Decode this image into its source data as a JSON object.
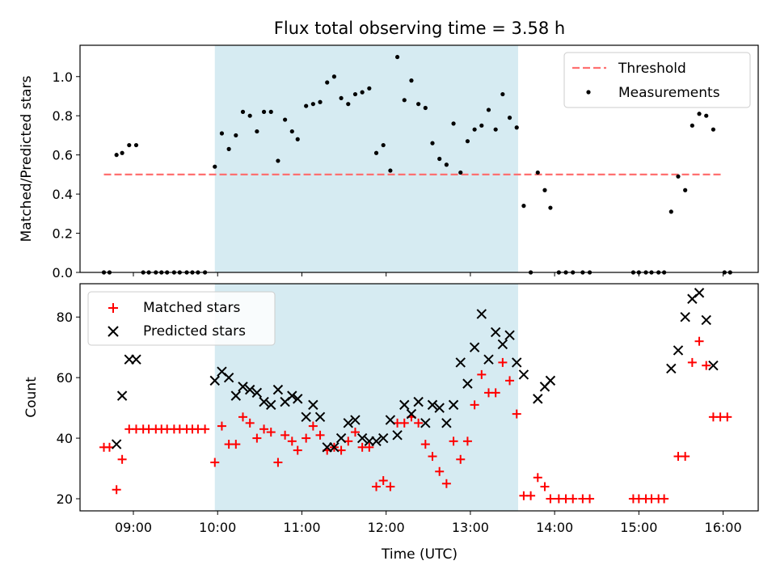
{
  "title": "Flux total observing time = 3.58 h",
  "highlight": {
    "start": "09:58",
    "end": "13:34",
    "color": "#add8e6"
  },
  "x_axis": {
    "label": "Time (UTC)",
    "range": [
      "08:22",
      "16:25"
    ],
    "ticks": [
      "09:00",
      "10:00",
      "11:00",
      "12:00",
      "13:00",
      "14:00",
      "15:00",
      "16:00"
    ]
  },
  "chart_data": [
    {
      "type": "scatter",
      "ylabel": "Matched/Predicted stars",
      "ylim": [
        0,
        1.16
      ],
      "yticks": [
        "0.0",
        "0.2",
        "0.4",
        "0.6",
        "0.8",
        "1.0"
      ],
      "legend": {
        "placement": "top-right",
        "entries": [
          "Threshold",
          "Measurements"
        ]
      },
      "threshold": {
        "name": "Threshold",
        "value": 0.5,
        "x_start": "08:39",
        "x_end": "16:00",
        "color": "#ff7070"
      },
      "series": [
        {
          "name": "Measurements",
          "color": "#000000",
          "points": [
            [
              "08:39",
              0.0
            ],
            [
              "08:43",
              0.0
            ],
            [
              "08:48",
              0.6
            ],
            [
              "08:52",
              0.61
            ],
            [
              "08:57",
              0.65
            ],
            [
              "09:02",
              0.65
            ],
            [
              "09:07",
              0.0
            ],
            [
              "09:11",
              0.0
            ],
            [
              "09:16",
              0.0
            ],
            [
              "09:20",
              0.0
            ],
            [
              "09:24",
              0.0
            ],
            [
              "09:29",
              0.0
            ],
            [
              "09:33",
              0.0
            ],
            [
              "09:38",
              0.0
            ],
            [
              "09:42",
              0.0
            ],
            [
              "09:46",
              0.0
            ],
            [
              "09:51",
              0.0
            ],
            [
              "09:58",
              0.54
            ],
            [
              "10:03",
              0.71
            ],
            [
              "10:08",
              0.63
            ],
            [
              "10:13",
              0.7
            ],
            [
              "10:18",
              0.82
            ],
            [
              "10:23",
              0.8
            ],
            [
              "10:28",
              0.72
            ],
            [
              "10:33",
              0.82
            ],
            [
              "10:38",
              0.82
            ],
            [
              "10:43",
              0.57
            ],
            [
              "10:48",
              0.78
            ],
            [
              "10:53",
              0.72
            ],
            [
              "10:57",
              0.68
            ],
            [
              "11:03",
              0.85
            ],
            [
              "11:08",
              0.86
            ],
            [
              "11:13",
              0.87
            ],
            [
              "11:18",
              0.97
            ],
            [
              "11:23",
              1.0
            ],
            [
              "11:28",
              0.89
            ],
            [
              "11:33",
              0.86
            ],
            [
              "11:38",
              0.91
            ],
            [
              "11:43",
              0.92
            ],
            [
              "11:48",
              0.94
            ],
            [
              "11:53",
              0.61
            ],
            [
              "11:58",
              0.65
            ],
            [
              "12:03",
              0.52
            ],
            [
              "12:08",
              1.1
            ],
            [
              "12:13",
              0.88
            ],
            [
              "12:18",
              0.98
            ],
            [
              "12:23",
              0.86
            ],
            [
              "12:28",
              0.84
            ],
            [
              "12:33",
              0.66
            ],
            [
              "12:38",
              0.58
            ],
            [
              "12:43",
              0.55
            ],
            [
              "12:48",
              0.76
            ],
            [
              "12:53",
              0.51
            ],
            [
              "12:58",
              0.67
            ],
            [
              "13:03",
              0.73
            ],
            [
              "13:08",
              0.75
            ],
            [
              "13:13",
              0.83
            ],
            [
              "13:18",
              0.73
            ],
            [
              "13:23",
              0.91
            ],
            [
              "13:28",
              0.79
            ],
            [
              "13:33",
              0.74
            ],
            [
              "13:38",
              0.34
            ],
            [
              "13:43",
              0.0
            ],
            [
              "13:48",
              0.51
            ],
            [
              "13:53",
              0.42
            ],
            [
              "13:57",
              0.33
            ],
            [
              "14:03",
              0.0
            ],
            [
              "14:08",
              0.0
            ],
            [
              "14:13",
              0.0
            ],
            [
              "14:20",
              0.0
            ],
            [
              "14:25",
              0.0
            ],
            [
              "14:56",
              0.0
            ],
            [
              "15:00",
              0.0
            ],
            [
              "15:05",
              0.0
            ],
            [
              "15:09",
              0.0
            ],
            [
              "15:14",
              0.0
            ],
            [
              "15:18",
              0.0
            ],
            [
              "15:23",
              0.31
            ],
            [
              "15:28",
              0.49
            ],
            [
              "15:33",
              0.42
            ],
            [
              "15:38",
              0.75
            ],
            [
              "15:43",
              0.81
            ],
            [
              "15:48",
              0.8
            ],
            [
              "15:53",
              0.73
            ],
            [
              "16:01",
              0.0
            ],
            [
              "16:05",
              0.0
            ]
          ]
        }
      ]
    },
    {
      "type": "scatter",
      "ylabel": "Count",
      "ylim": [
        16,
        91
      ],
      "yticks": [
        "20",
        "40",
        "60",
        "80"
      ],
      "legend": {
        "placement": "top-left",
        "entries": [
          "Matched stars",
          "Predicted stars"
        ]
      },
      "series": [
        {
          "name": "Matched stars",
          "color": "#ff0000",
          "marker": "plus",
          "points": [
            [
              "08:39",
              37
            ],
            [
              "08:43",
              37
            ],
            [
              "08:48",
              23
            ],
            [
              "08:52",
              33
            ],
            [
              "08:57",
              43
            ],
            [
              "09:02",
              43
            ],
            [
              "09:07",
              43
            ],
            [
              "09:11",
              43
            ],
            [
              "09:16",
              43
            ],
            [
              "09:20",
              43
            ],
            [
              "09:24",
              43
            ],
            [
              "09:29",
              43
            ],
            [
              "09:33",
              43
            ],
            [
              "09:38",
              43
            ],
            [
              "09:42",
              43
            ],
            [
              "09:46",
              43
            ],
            [
              "09:51",
              43
            ],
            [
              "09:58",
              32
            ],
            [
              "10:03",
              44
            ],
            [
              "10:08",
              38
            ],
            [
              "10:13",
              38
            ],
            [
              "10:18",
              47
            ],
            [
              "10:23",
              45
            ],
            [
              "10:28",
              40
            ],
            [
              "10:33",
              43
            ],
            [
              "10:38",
              42
            ],
            [
              "10:43",
              32
            ],
            [
              "10:48",
              41
            ],
            [
              "10:53",
              39
            ],
            [
              "10:57",
              36
            ],
            [
              "11:03",
              40
            ],
            [
              "11:08",
              44
            ],
            [
              "11:13",
              41
            ],
            [
              "11:18",
              36
            ],
            [
              "11:23",
              37
            ],
            [
              "11:28",
              36
            ],
            [
              "11:33",
              39
            ],
            [
              "11:38",
              42
            ],
            [
              "11:43",
              37
            ],
            [
              "11:48",
              37
            ],
            [
              "11:53",
              24
            ],
            [
              "11:58",
              26
            ],
            [
              "12:03",
              24
            ],
            [
              "12:08",
              45
            ],
            [
              "12:13",
              45
            ],
            [
              "12:18",
              47
            ],
            [
              "12:23",
              45
            ],
            [
              "12:28",
              38
            ],
            [
              "12:33",
              34
            ],
            [
              "12:38",
              29
            ],
            [
              "12:43",
              25
            ],
            [
              "12:48",
              39
            ],
            [
              "12:53",
              33
            ],
            [
              "12:58",
              39
            ],
            [
              "13:03",
              51
            ],
            [
              "13:08",
              61
            ],
            [
              "13:13",
              55
            ],
            [
              "13:18",
              55
            ],
            [
              "13:23",
              65
            ],
            [
              "13:28",
              59
            ],
            [
              "13:33",
              48
            ],
            [
              "13:38",
              21
            ],
            [
              "13:43",
              21
            ],
            [
              "13:48",
              27
            ],
            [
              "13:53",
              24
            ],
            [
              "13:57",
              20
            ],
            [
              "14:03",
              20
            ],
            [
              "14:08",
              20
            ],
            [
              "14:13",
              20
            ],
            [
              "14:20",
              20
            ],
            [
              "14:25",
              20
            ],
            [
              "14:56",
              20
            ],
            [
              "15:00",
              20
            ],
            [
              "15:05",
              20
            ],
            [
              "15:09",
              20
            ],
            [
              "15:14",
              20
            ],
            [
              "15:18",
              20
            ],
            [
              "15:28",
              34
            ],
            [
              "15:33",
              34
            ],
            [
              "15:38",
              65
            ],
            [
              "15:43",
              72
            ],
            [
              "15:48",
              64
            ],
            [
              "15:53",
              47
            ],
            [
              "15:58",
              47
            ],
            [
              "16:03",
              47
            ]
          ]
        },
        {
          "name": "Predicted stars",
          "color": "#000000",
          "marker": "x",
          "points": [
            [
              "08:48",
              38
            ],
            [
              "08:52",
              54
            ],
            [
              "08:57",
              66
            ],
            [
              "09:02",
              66
            ],
            [
              "09:58",
              59
            ],
            [
              "10:03",
              62
            ],
            [
              "10:08",
              60
            ],
            [
              "10:13",
              54
            ],
            [
              "10:18",
              57
            ],
            [
              "10:23",
              56
            ],
            [
              "10:28",
              55
            ],
            [
              "10:33",
              52
            ],
            [
              "10:38",
              51
            ],
            [
              "10:43",
              56
            ],
            [
              "10:48",
              52
            ],
            [
              "10:53",
              54
            ],
            [
              "10:57",
              53
            ],
            [
              "11:03",
              47
            ],
            [
              "11:08",
              51
            ],
            [
              "11:13",
              47
            ],
            [
              "11:18",
              37
            ],
            [
              "11:23",
              37
            ],
            [
              "11:28",
              40
            ],
            [
              "11:33",
              45
            ],
            [
              "11:38",
              46
            ],
            [
              "11:43",
              40
            ],
            [
              "11:48",
              39
            ],
            [
              "11:53",
              39
            ],
            [
              "11:58",
              40
            ],
            [
              "12:03",
              46
            ],
            [
              "12:08",
              41
            ],
            [
              "12:13",
              51
            ],
            [
              "12:18",
              48
            ],
            [
              "12:23",
              52
            ],
            [
              "12:28",
              45
            ],
            [
              "12:33",
              51
            ],
            [
              "12:38",
              50
            ],
            [
              "12:43",
              45
            ],
            [
              "12:48",
              51
            ],
            [
              "12:53",
              65
            ],
            [
              "12:58",
              58
            ],
            [
              "13:03",
              70
            ],
            [
              "13:08",
              81
            ],
            [
              "13:13",
              66
            ],
            [
              "13:18",
              75
            ],
            [
              "13:23",
              71
            ],
            [
              "13:28",
              74
            ],
            [
              "13:33",
              65
            ],
            [
              "13:38",
              61
            ],
            [
              "13:48",
              53
            ],
            [
              "13:53",
              57
            ],
            [
              "13:57",
              59
            ],
            [
              "15:23",
              63
            ],
            [
              "15:28",
              69
            ],
            [
              "15:33",
              80
            ],
            [
              "15:38",
              86
            ],
            [
              "15:43",
              88
            ],
            [
              "15:48",
              79
            ],
            [
              "15:53",
              64
            ]
          ]
        }
      ]
    }
  ]
}
